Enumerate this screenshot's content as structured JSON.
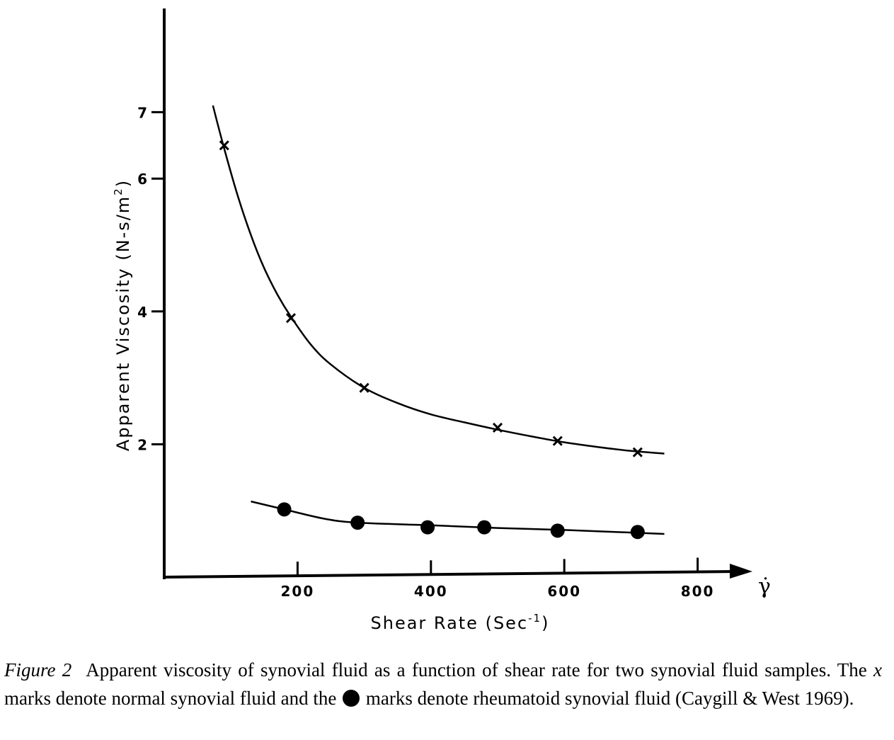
{
  "chart_data": {
    "type": "scatter",
    "title": "",
    "xlabel": "Shear Rate (Sec",
    "xlabel_sup": "-1",
    "xlabel_close": ")",
    "x_axis_symbol": "γ̇",
    "ylabel": "Apparent Viscosity (N-s/m",
    "ylabel_sup": "2",
    "ylabel_close": ")",
    "x_ticks": [
      200,
      400,
      600,
      800
    ],
    "x_tick_labels": [
      "200",
      "400",
      "600",
      "800"
    ],
    "y_ticks": [
      2,
      4,
      6,
      7
    ],
    "y_tick_labels": [
      "2",
      "4",
      "6",
      "7"
    ],
    "xlim": [
      0,
      880
    ],
    "ylim": [
      0,
      7.4
    ],
    "grid": false,
    "legend": "none",
    "series": [
      {
        "name": "normal synovial fluid",
        "marker": "x",
        "points": [
          {
            "x": 90,
            "y": 6.5
          },
          {
            "x": 190,
            "y": 3.9
          },
          {
            "x": 300,
            "y": 2.85
          },
          {
            "x": 500,
            "y": 2.25
          },
          {
            "x": 590,
            "y": 2.05
          },
          {
            "x": 710,
            "y": 1.88
          }
        ],
        "curve": [
          {
            "x": 73,
            "y": 7.1
          },
          {
            "x": 90,
            "y": 6.45
          },
          {
            "x": 110,
            "y": 5.75
          },
          {
            "x": 130,
            "y": 5.15
          },
          {
            "x": 150,
            "y": 4.65
          },
          {
            "x": 170,
            "y": 4.25
          },
          {
            "x": 190,
            "y": 3.92
          },
          {
            "x": 220,
            "y": 3.5
          },
          {
            "x": 250,
            "y": 3.2
          },
          {
            "x": 300,
            "y": 2.85
          },
          {
            "x": 350,
            "y": 2.62
          },
          {
            "x": 400,
            "y": 2.45
          },
          {
            "x": 450,
            "y": 2.33
          },
          {
            "x": 500,
            "y": 2.22
          },
          {
            "x": 550,
            "y": 2.12
          },
          {
            "x": 600,
            "y": 2.03
          },
          {
            "x": 650,
            "y": 1.96
          },
          {
            "x": 700,
            "y": 1.9
          },
          {
            "x": 750,
            "y": 1.86
          }
        ]
      },
      {
        "name": "rheumatoid synovial fluid",
        "marker": "dot",
        "points": [
          {
            "x": 180,
            "y": 1.02
          },
          {
            "x": 290,
            "y": 0.82
          },
          {
            "x": 395,
            "y": 0.75
          },
          {
            "x": 480,
            "y": 0.75
          },
          {
            "x": 590,
            "y": 0.7
          },
          {
            "x": 710,
            "y": 0.68
          }
        ],
        "curve": [
          {
            "x": 130,
            "y": 1.14
          },
          {
            "x": 180,
            "y": 1.02
          },
          {
            "x": 240,
            "y": 0.88
          },
          {
            "x": 290,
            "y": 0.82
          },
          {
            "x": 400,
            "y": 0.78
          },
          {
            "x": 500,
            "y": 0.74
          },
          {
            "x": 600,
            "y": 0.71
          },
          {
            "x": 750,
            "y": 0.65
          }
        ]
      }
    ]
  },
  "caption": {
    "label": "Figure 2",
    "text_before_x": "Apparent viscosity of synovial fluid as a function of shear rate for two synovial fluid samples. The",
    "x_mark": "x",
    "text_between": "marks denote normal synovial fluid and the",
    "dot_icon": "filled-circle",
    "text_after_dot": "marks denote rheumatoid synovial fluid (Caygill & West 1969)."
  }
}
